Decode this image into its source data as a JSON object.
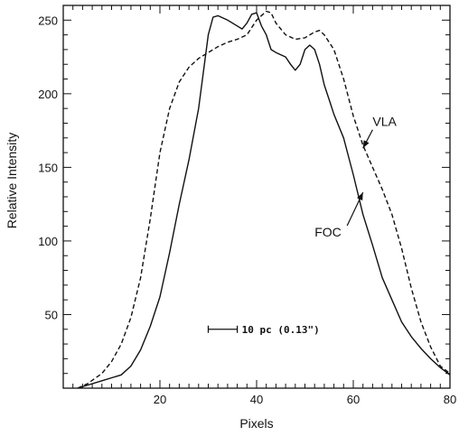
{
  "chart_data": {
    "type": "line",
    "xlabel": "Pixels",
    "ylabel": "Relative Intensity",
    "xlim": [
      0,
      80
    ],
    "ylim": [
      0,
      260
    ],
    "x_ticks": [
      20,
      40,
      60,
      80
    ],
    "y_ticks": [
      50,
      100,
      150,
      200,
      250
    ],
    "series": [
      {
        "name": "FOC",
        "style": "solid",
        "x": [
          3,
          8,
          12,
          14,
          16,
          18,
          20,
          22,
          24,
          26,
          28,
          30,
          31,
          32,
          34,
          36,
          37,
          38,
          39,
          40,
          41,
          42,
          43,
          44,
          46,
          47,
          48,
          49,
          50,
          51,
          52,
          53,
          54,
          55,
          56,
          58,
          60,
          62,
          64,
          66,
          68,
          70,
          72,
          74,
          76,
          78,
          80
        ],
        "y": [
          0,
          5,
          9,
          15,
          26,
          42,
          62,
          92,
          125,
          155,
          190,
          240,
          252,
          253,
          250,
          246,
          244,
          248,
          254,
          255,
          246,
          240,
          230,
          228,
          225,
          220,
          216,
          220,
          230,
          233,
          230,
          220,
          206,
          196,
          186,
          170,
          145,
          118,
          97,
          75,
          60,
          45,
          35,
          27,
          20,
          14,
          9
        ]
      },
      {
        "name": "VLA",
        "style": "dashed",
        "x": [
          3,
          5,
          8,
          10,
          12,
          14,
          16,
          18,
          20,
          22,
          24,
          26,
          28,
          30,
          32,
          34,
          36,
          38,
          40,
          42,
          43,
          44,
          46,
          48,
          50,
          52,
          53,
          54,
          56,
          58,
          60,
          62,
          64,
          66,
          68,
          70,
          72,
          74,
          76,
          78,
          80
        ],
        "y": [
          0,
          3,
          10,
          18,
          30,
          48,
          75,
          115,
          160,
          190,
          208,
          218,
          224,
          228,
          232,
          235,
          237,
          240,
          250,
          256,
          255,
          248,
          240,
          237,
          238,
          242,
          243,
          240,
          230,
          210,
          185,
          165,
          150,
          135,
          118,
          95,
          68,
          45,
          28,
          15,
          10
        ]
      }
    ],
    "annotations": [
      {
        "text": "VLA",
        "x": 64,
        "y": 178,
        "arrow_to": [
          62,
          163
        ]
      },
      {
        "text": "FOC",
        "x": 52,
        "y": 103,
        "arrow_to": [
          62,
          133
        ]
      }
    ],
    "scale_bar": {
      "label": "10 pc (0.13\")",
      "x_start": 30,
      "x_end": 36,
      "y": 40
    },
    "grid": false,
    "legend": "none"
  }
}
